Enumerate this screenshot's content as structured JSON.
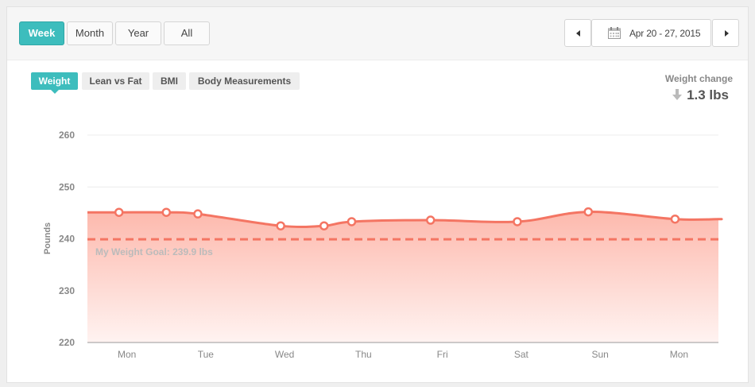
{
  "range_buttons": [
    {
      "label": "Week",
      "active": true
    },
    {
      "label": "Month",
      "active": false
    },
    {
      "label": "Year",
      "active": false
    },
    {
      "label": "All",
      "active": false
    }
  ],
  "date_range": {
    "label": "Apr 20 - 27, 2015"
  },
  "tabs": [
    {
      "label": "Weight",
      "active": true
    },
    {
      "label": "Lean vs Fat",
      "active": false
    },
    {
      "label": "BMI",
      "active": false
    },
    {
      "label": "Body Measurements",
      "active": false
    }
  ],
  "weight_change": {
    "label": "Weight change",
    "value": "1.3 lbs",
    "direction": "down"
  },
  "colors": {
    "accent": "#3dbdbd",
    "line": "#f47563",
    "fill_top": "#fdb9ad",
    "fill_bottom": "#fff3f1",
    "goal": "#f47563"
  },
  "chart_data": {
    "type": "area",
    "ylabel": "Pounds",
    "ylim": [
      220,
      260
    ],
    "yticks": [
      220,
      230,
      240,
      250,
      260
    ],
    "grid": true,
    "legend": "none",
    "x_categories": [
      "Mon",
      "Tue",
      "Wed",
      "Thu",
      "Fri",
      "Sat",
      "Sun",
      "Mon"
    ],
    "x_domain": [
      -0.5,
      7.5
    ],
    "series": [
      {
        "x": [
          -0.1,
          0.5,
          0.9,
          1.95,
          2.5,
          2.85,
          3.85,
          4.95,
          5.85,
          6.95,
          7.5
        ],
        "values": [
          245.1,
          245.1,
          244.8,
          242.5,
          242.5,
          243.3,
          243.6,
          243.3,
          245.2,
          243.8,
          243.8
        ],
        "marked": [
          true,
          true,
          true,
          true,
          true,
          true,
          true,
          true,
          true,
          true,
          false
        ]
      }
    ],
    "goal": {
      "value": 239.9,
      "label": "My Weight Goal: 239.9 lbs"
    }
  }
}
